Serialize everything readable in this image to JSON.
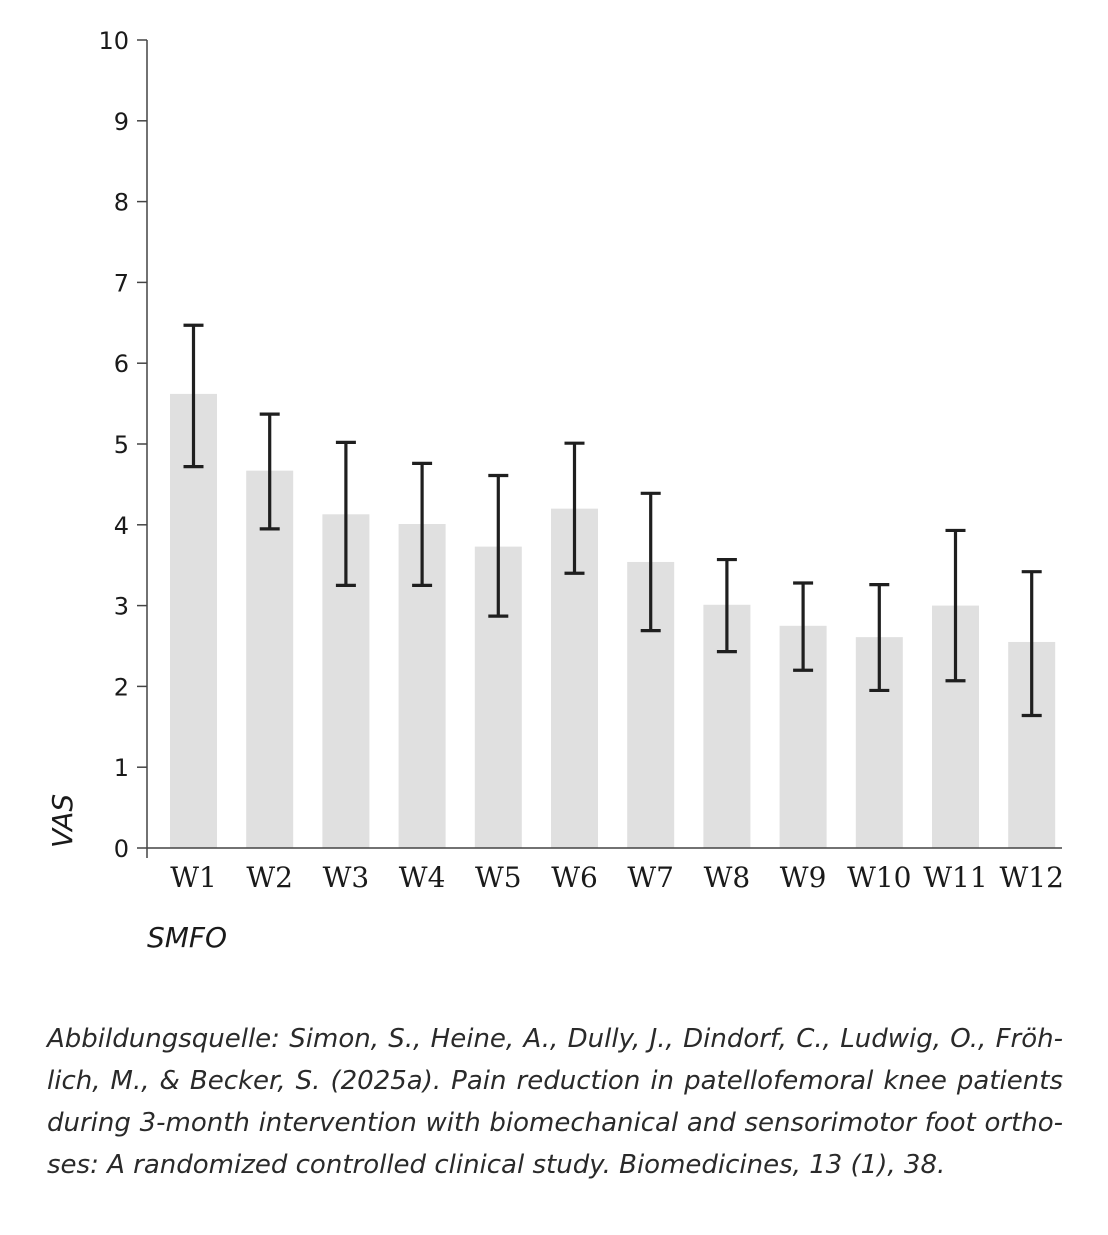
{
  "chart_data": {
    "type": "bar",
    "categories": [
      "W1",
      "W2",
      "W3",
      "W4",
      "W5",
      "W6",
      "W7",
      "W8",
      "W9",
      "W10",
      "W11",
      "W12"
    ],
    "series": [
      {
        "values": [
          5.62,
          4.67,
          4.13,
          4.01,
          3.73,
          4.2,
          3.54,
          3.01,
          2.75,
          2.61,
          3.0,
          2.55
        ],
        "error_low": [
          4.72,
          3.95,
          3.25,
          3.25,
          2.87,
          3.4,
          2.69,
          2.43,
          2.2,
          1.95,
          2.07,
          1.64
        ],
        "error_high": [
          6.47,
          5.37,
          5.02,
          4.76,
          4.61,
          5.01,
          4.39,
          3.57,
          3.28,
          3.26,
          3.93,
          3.42
        ]
      }
    ],
    "ylabel": "VAS",
    "xlabel": "SMFO",
    "ylim": [
      0,
      10
    ],
    "yticks": [
      "0",
      "1",
      "2",
      "3",
      "4",
      "5",
      "6",
      "7",
      "8",
      "9",
      "10"
    ],
    "grid": false,
    "colors": {
      "bar": "#e0e0e0",
      "error": "#1f1f1f",
      "axis": "#444444"
    }
  },
  "caption": "Abbildungsquelle: Simon, S., Heine, A., Dully, J., Dindorf, C., Ludwig, O., Fröh-lich, M., & Becker, S. (2025a). Pain reduction in patellofemoral knee patients during 3-month intervention with biomechanical and sensorimotor foot ortho-ses: A randomized controlled clinical study. Biomedicines, 13 (1), 38."
}
